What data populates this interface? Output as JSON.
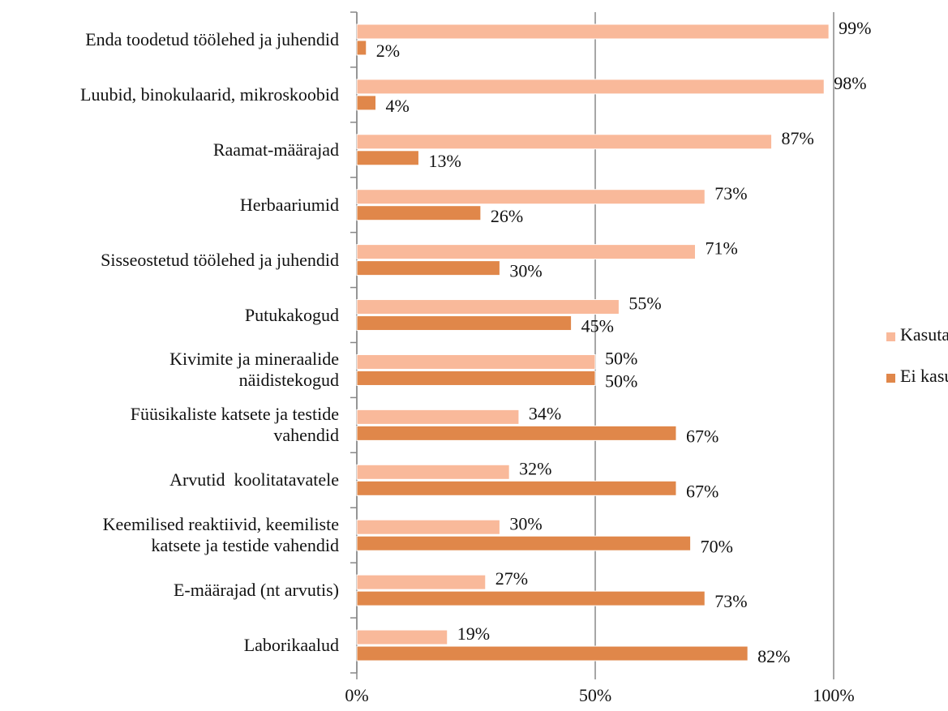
{
  "chart_data": {
    "type": "hbar",
    "categories": [
      "Enda toodetud töölehed ja juhendid",
      "Luubid, binokulaarid, mikroskoobid",
      "Raamat-määrajad",
      "Herbaariumid",
      "Sisseostetud töölehed ja juhendid",
      "Putukakogud",
      "Kivimite ja mineraalide\nnäidistekogud",
      "Füüsikaliste katsete ja testide\nvahendid",
      "Arvutid  koolitatavatele",
      "Keemilised reaktiivid, keemiliste\nkatsete ja testide vahendid",
      "E-määrajad (nt arvutis)",
      "Laborikaalud"
    ],
    "series": [
      {
        "name": "Kasutan",
        "color": "#f9b99a",
        "values": [
          99,
          98,
          87,
          73,
          71,
          55,
          50,
          34,
          32,
          30,
          27,
          19
        ],
        "value_labels": [
          "99%",
          "98%",
          "87%",
          "73%",
          "71%",
          "55%",
          "50%",
          "34%",
          "32%",
          "30%",
          "27%",
          "19%"
        ]
      },
      {
        "name": "Ei kasuta",
        "color": "#e0874a",
        "values": [
          2,
          4,
          13,
          26,
          30,
          45,
          50,
          67,
          67,
          70,
          73,
          82
        ],
        "value_labels": [
          "2%",
          "4%",
          "13%",
          "26%",
          "30%",
          "45%",
          "50%",
          "67%",
          "67%",
          "70%",
          "73%",
          "82%"
        ]
      }
    ],
    "xlim": [
      0,
      100
    ],
    "xticks": [
      {
        "value": 0,
        "label": "0%"
      },
      {
        "value": 50,
        "label": "50%"
      },
      {
        "value": 100,
        "label": "100%"
      }
    ],
    "grid": true,
    "legend": "right"
  }
}
